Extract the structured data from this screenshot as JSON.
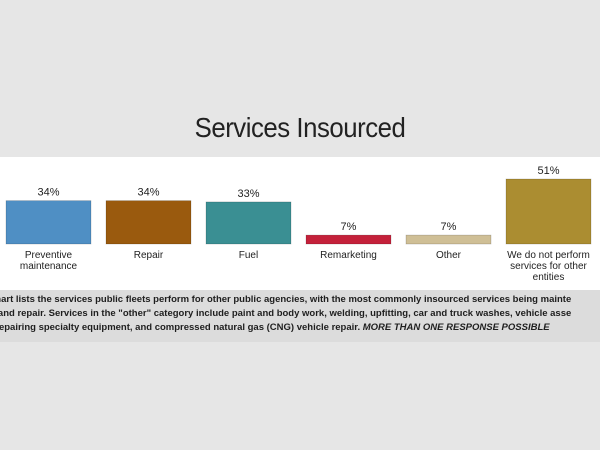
{
  "chart_data": {
    "type": "bar",
    "title": "Services Insourced",
    "categories": [
      "Preventive maintenance",
      "Repair",
      "Fuel",
      "Remarketing",
      "Other",
      "We do not perform services for other entities"
    ],
    "category_lines": [
      [
        "Preventive",
        "maintenance"
      ],
      [
        "Repair"
      ],
      [
        "Fuel"
      ],
      [
        "Remarketing"
      ],
      [
        "Other"
      ],
      [
        "We do not perform",
        "services for other",
        "entities"
      ]
    ],
    "values": [
      34,
      34,
      33,
      7,
      7,
      51
    ],
    "value_labels": [
      "34%",
      "34%",
      "33%",
      "7%",
      "7%",
      "51%"
    ],
    "colors": [
      "#4f8fc4",
      "#9a5a0e",
      "#3a8f93",
      "#c4213a",
      "#cfbf96",
      "#ab8d31"
    ],
    "ylim": [
      0,
      51
    ],
    "grid": false,
    "legend": "none"
  },
  "caption": {
    "line1": "chart lists the services public fleets perform for other public agencies, with the most commonly insourced services being mainte",
    "line2": "e and repair. Services in the \"other\" category include paint and body work, welding, upfitting, car and truck washes, vehicle asse",
    "line3_main": ", repairing specialty equipment, and compressed natural gas (CNG) vehicle repair. ",
    "line3_emphasis": "MORE THAN ONE RESPONSE POSSIBLE"
  }
}
